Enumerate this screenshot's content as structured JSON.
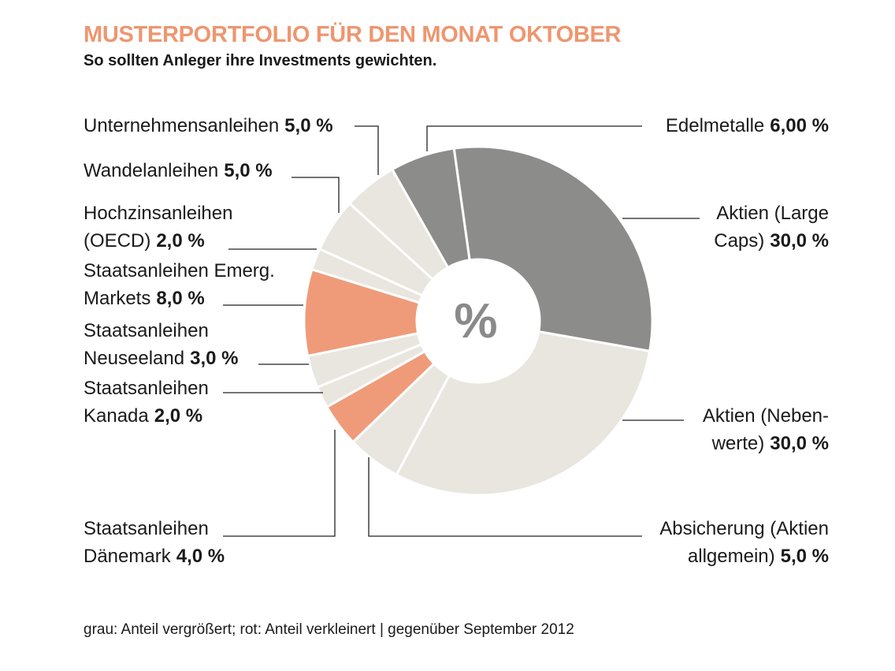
{
  "chart_data": {
    "type": "pie",
    "title": "MUSTERPORTFOLIO FÜR DEN MONAT OKTOBER",
    "subtitle": "So sollten Anleger ihre Investments gewichten.",
    "center_label": "%",
    "footnote": "grau: Anteil vergrößert; rot: Anteil verkleinert | gegenüber September 2012",
    "categories": [
      "Edelmetalle",
      "Aktien (Large\nCaps)",
      "Aktien (Neben-\nwerte)",
      "Absicherung (Aktien\nallgemein)",
      "Staatsanleihen\nDänemark",
      "Staatsanleihen\nKanada",
      "Staatsanleihen\nNeuseeland",
      "Staatsanleihen Emerg.\nMarkets",
      "Hochzinsanleihen\n(OECD)",
      "Wandelanleihen",
      "Unternehmensanleihen"
    ],
    "values": [
      6,
      30,
      30,
      5,
      4,
      2,
      3,
      8,
      2,
      5,
      5
    ],
    "value_labels": [
      "6,00 %",
      "30,0 %",
      "30,0 %",
      "5,0 %",
      "4,0 %",
      "2,0 %",
      "3,0 %",
      "8,0 %",
      "2,0 %",
      "5,0 %",
      "5,0 %"
    ],
    "colors": [
      "#8c8d8b",
      "#8c8d8b",
      "#e9e6df",
      "#e9e6df",
      "#ef9b7a",
      "#e9e6df",
      "#e9e6df",
      "#ef9b7a",
      "#e9e6df",
      "#e9e6df",
      "#e9e6df"
    ]
  }
}
